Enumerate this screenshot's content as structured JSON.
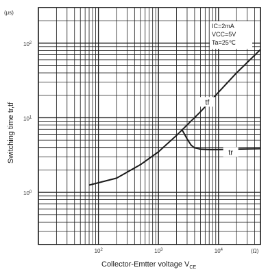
{
  "chart_data": {
    "type": "line",
    "x_scale": "log",
    "y_scale": "log",
    "xlim": [
      10,
      50000
    ],
    "ylim": [
      0.2,
      300
    ],
    "x_ticks": [
      {
        "value": 100,
        "mant": "10",
        "exp": "2"
      },
      {
        "value": 1000,
        "mant": "10",
        "exp": "3"
      },
      {
        "value": 10000,
        "mant": "10",
        "exp": "4"
      }
    ],
    "y_ticks": [
      {
        "value": 1,
        "mant": "10",
        "exp": "0"
      },
      {
        "value": 10,
        "mant": "10",
        "exp": "1"
      },
      {
        "value": 100,
        "mant": "10",
        "exp": "2"
      }
    ],
    "xlabel_main": "Collector-Emtter voltage V",
    "xlabel_sub": "CE",
    "xunit": "(Ω)",
    "ylabel": "Switching time tr,tf",
    "yunit": "(μs)",
    "conditions": [
      "IC=2mA",
      "VCC=5V",
      "Ta=25℃"
    ],
    "grid": true,
    "series": [
      {
        "name": "tf",
        "x": [
          70,
          200,
          500,
          1000,
          2000,
          5000,
          10000,
          20000,
          50000
        ],
        "y": [
          1.25,
          1.55,
          2.35,
          3.5,
          5.8,
          12,
          22,
          40,
          82
        ]
      },
      {
        "name": "tr",
        "x": [
          2500,
          3000,
          3500,
          4000,
          5000,
          7000,
          10000,
          20000,
          50000
        ],
        "y": [
          6.8,
          5.2,
          4.3,
          3.95,
          3.8,
          3.75,
          3.75,
          3.8,
          3.85
        ]
      }
    ],
    "series_label_at": [
      {
        "x": 6500,
        "y": 16
      },
      {
        "x": 16000,
        "y": 3.4
      }
    ]
  }
}
